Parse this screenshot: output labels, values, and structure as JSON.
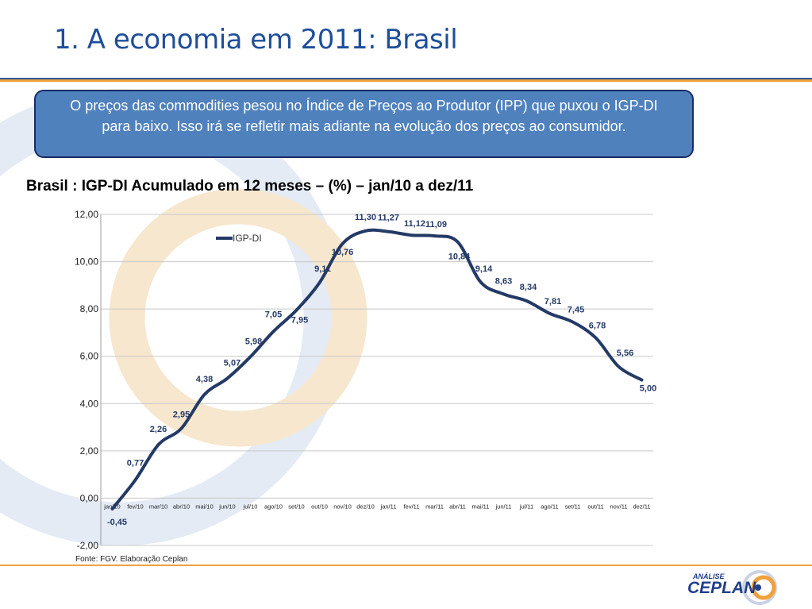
{
  "slide": {
    "title": "1. A economia em 2011: Brasil",
    "callout": "O preços das commodities pesou no Índice de Preços ao Produtor (IPP) que puxou o IGP-DI para baixo. Isso irá se refletir mais adiante na evolução dos preços ao consumidor.",
    "source": "Fonte: FGV. Elaboração Ceplan",
    "logo_small": "ANÁLISE",
    "logo_main": "CEPLAN"
  },
  "colors": {
    "title": "#1f4e99",
    "callout_fill": "#4f81bd",
    "callout_border": "#1a2b66",
    "series": "#243a66",
    "accent": "#f0a13a"
  },
  "chart_data": {
    "type": "line",
    "title": "Brasil : IGP-DI Acumulado em 12 meses – (%) – jan/10 a dez/11",
    "xlabel": "",
    "ylabel": "",
    "ylim": [
      -2,
      12
    ],
    "grid": true,
    "legend_position": "top-left",
    "categories": [
      "jan/10",
      "fev/10",
      "mar/10",
      "abr/10",
      "mai/10",
      "jun/10",
      "jul/10",
      "ago/10",
      "set/10",
      "out/10",
      "nov/10",
      "dez/10",
      "jan/11",
      "fev/11",
      "mar/11",
      "abr/11",
      "mai/11",
      "jun/11",
      "jul/11",
      "ago/11",
      "set/11",
      "out/11",
      "nov/11",
      "dez/11"
    ],
    "y_ticks": [
      "-2,00",
      "0,00",
      "2,00",
      "4,00",
      "6,00",
      "8,00",
      "10,00",
      "12,00"
    ],
    "series": [
      {
        "name": "IGP-DI",
        "values": [
          -0.45,
          0.77,
          2.26,
          2.95,
          4.38,
          5.07,
          5.98,
          7.05,
          7.95,
          9.11,
          10.76,
          11.3,
          11.27,
          11.12,
          11.09,
          10.84,
          9.14,
          8.63,
          8.34,
          7.81,
          7.45,
          6.78,
          5.56,
          5.0
        ],
        "labels": [
          "-0,45",
          "0,77",
          "2,26",
          "2,95",
          "4,38",
          "5,07",
          "5,98",
          "7,05",
          "7,95",
          "9,11",
          "10,76",
          "11,30",
          "11,27",
          "11,12",
          "11,09",
          "10,84",
          "9,14",
          "8,63",
          "8,34",
          "7,81",
          "7,45",
          "6,78",
          "5,56",
          "5,00"
        ]
      }
    ]
  }
}
